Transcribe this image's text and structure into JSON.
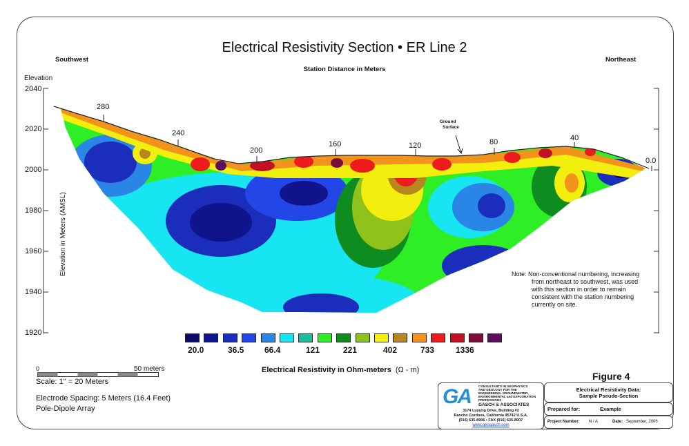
{
  "title": "Electrical Resistivity Section  •  ER Line 2",
  "directions": {
    "left": "Southwest",
    "right": "Northeast"
  },
  "station_axis_title": "Station Distance in Meters",
  "station_labels": [
    "280",
    "240",
    "200",
    "160",
    "120",
    "80",
    "40",
    "0.0"
  ],
  "elevation_heading": "Elevation",
  "elevation_ticks": [
    "2040",
    "2020",
    "2000",
    "1980",
    "1960",
    "1940",
    "1920"
  ],
  "elevation_axis_label": "Elevation in Meters (AMSL)",
  "ground_surface_label": [
    "Ground",
    "Surface"
  ],
  "legend": {
    "colors": [
      "#0d0a6a",
      "#10148c",
      "#1a2dbb",
      "#2347e6",
      "#2a86e6",
      "#17e6f2",
      "#1dbb9a",
      "#2eee25",
      "#0f8c1f",
      "#8fc31c",
      "#f2ee0d",
      "#b4871f",
      "#f2931b",
      "#ed1b1b",
      "#c11125",
      "#7a0f3c",
      "#5c0e5a"
    ],
    "value_labels": [
      "20.0",
      "36.5",
      "66.4",
      "121",
      "221",
      "402",
      "733",
      "1336"
    ],
    "title": "Electrical Resistivity in Ohm-meters",
    "unit": "(Ω - m)"
  },
  "scale_bar": {
    "zero": "0",
    "end": "50 meters",
    "scale_text": "Scale: 1\" = 20 Meters"
  },
  "array_info": [
    "Electrode Spacing:  5 Meters (16.4 Feet)",
    "Pole-Dipole Array"
  ],
  "note": [
    "Note:  Non-conventional numbering, increasing",
    "from northeast to southwest, was used",
    "with this section in order to remain",
    "consistent with the station numbering",
    "currently on site."
  ],
  "figure_label": "Figure 4",
  "company": {
    "logo_text": "GA",
    "description": [
      "CONSULTANTS IN GEOPHYSICS",
      "AND GEOLOGY FOR THE",
      "ENGINEERING, GROUNDWATER,",
      "ENVIRONMENTAL and EXPLORATION",
      "PROFESSIONS"
    ],
    "name": "GASCH & ASSOCIATES",
    "address1": "3174 Luyung Drive, Building #2",
    "address2": "Rancho Cordova, California 95742  U.S.A.",
    "phone": "(916) 635-8906   •   FAX (916) 635-8907",
    "website": "www.geogasch.com"
  },
  "title_block": {
    "heading": [
      "Electrical Resistivity Data:",
      "Sample Pseudo-Section"
    ],
    "prepared_label": "Prepared for:",
    "prepared_value": "Example",
    "project_label": "Project Number:",
    "project_value": "N / A",
    "date_label": "Date:",
    "date_value": "September, 2006"
  }
}
